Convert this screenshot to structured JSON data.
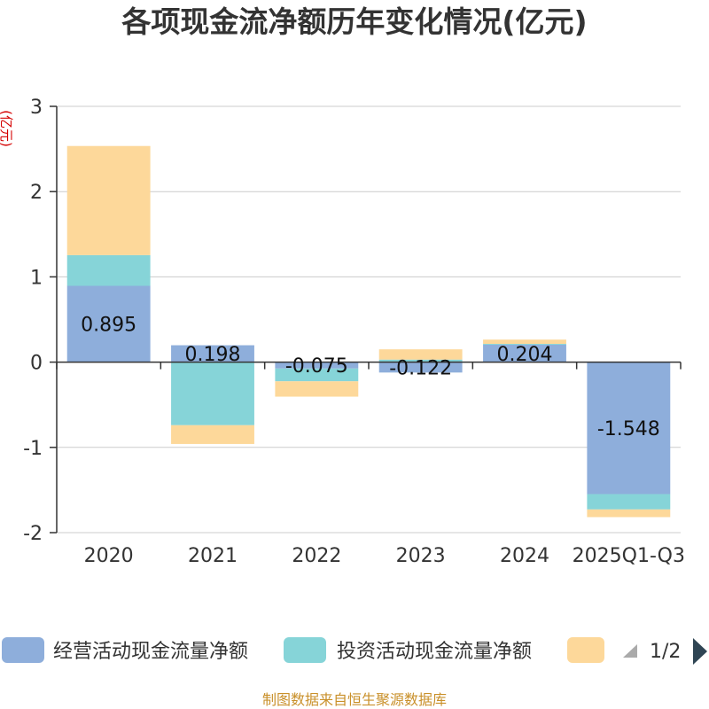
{
  "chart_data": {
    "type": "bar",
    "stacked": true,
    "title": "各项现金流净额历年变化情况(亿元)",
    "xlabel": "",
    "ylabel": "(亿元)",
    "ylim": [
      -2,
      3
    ],
    "yticks": [
      -2,
      -1,
      0,
      1,
      2,
      3
    ],
    "grid": true,
    "categories": [
      "2020",
      "2021",
      "2022",
      "2023",
      "2024",
      "2025Q1-Q3"
    ],
    "series": [
      {
        "name": "经营活动现金流量净额",
        "color": "#8eaedb",
        "values": [
          0.895,
          0.198,
          -0.075,
          -0.122,
          0.204,
          -1.548
        ]
      },
      {
        "name": "投资活动现金流量净额",
        "color": "#86d4d8",
        "values": [
          0.36,
          -0.74,
          -0.15,
          0.03,
          0.01,
          -0.18
        ]
      },
      {
        "name": "",
        "color": "#fdd89a",
        "values": [
          1.28,
          -0.22,
          -0.18,
          0.12,
          0.05,
          -0.09
        ]
      }
    ],
    "data_labels": [
      "0.895",
      "0.198",
      "-0.075",
      "-0.122",
      "0.204",
      "-1.548"
    ],
    "legend_position": "bottom"
  },
  "legend": {
    "pager_text": "1/2",
    "prev_icon": "triangle-left-icon",
    "next_icon": "triangle-right-icon"
  },
  "footer": {
    "source": "制图数据来自恒生聚源数据库"
  }
}
